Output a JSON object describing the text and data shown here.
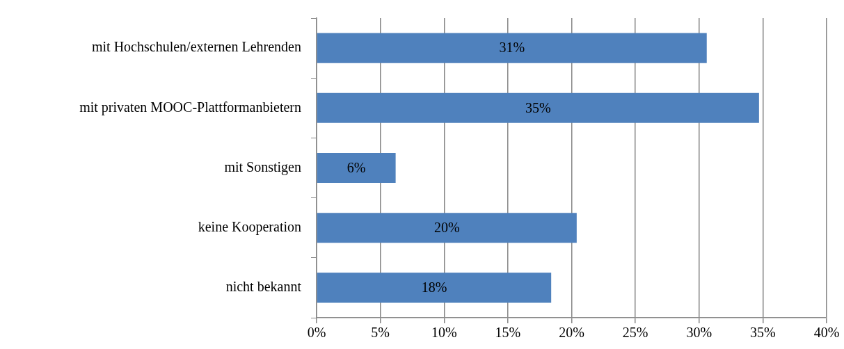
{
  "chart_data": {
    "type": "bar",
    "orientation": "horizontal",
    "categories": [
      "mit Hochschulen/externen Lehrenden",
      "mit privaten MOOC-Plattformanbietern",
      "mit Sonstigen",
      "keine Kooperation",
      "nicht bekannt"
    ],
    "values": [
      30.6,
      34.7,
      6.2,
      20.4,
      18.4
    ],
    "value_labels": [
      "31%",
      "35%",
      "6%",
      "20%",
      "18%"
    ],
    "color": "#4f81bd",
    "xlim": [
      0,
      40
    ],
    "xticks": [
      {
        "value": 0,
        "label": "0%"
      },
      {
        "value": 5,
        "label": "5%"
      },
      {
        "value": 10,
        "label": "10%"
      },
      {
        "value": 15,
        "label": "15%"
      },
      {
        "value": 20,
        "label": "20%"
      },
      {
        "value": 25,
        "label": "25%"
      },
      {
        "value": 30,
        "label": "30%"
      },
      {
        "value": 35,
        "label": "35%"
      },
      {
        "value": 40,
        "label": "40%"
      }
    ],
    "grid": "x",
    "legend": false
  }
}
